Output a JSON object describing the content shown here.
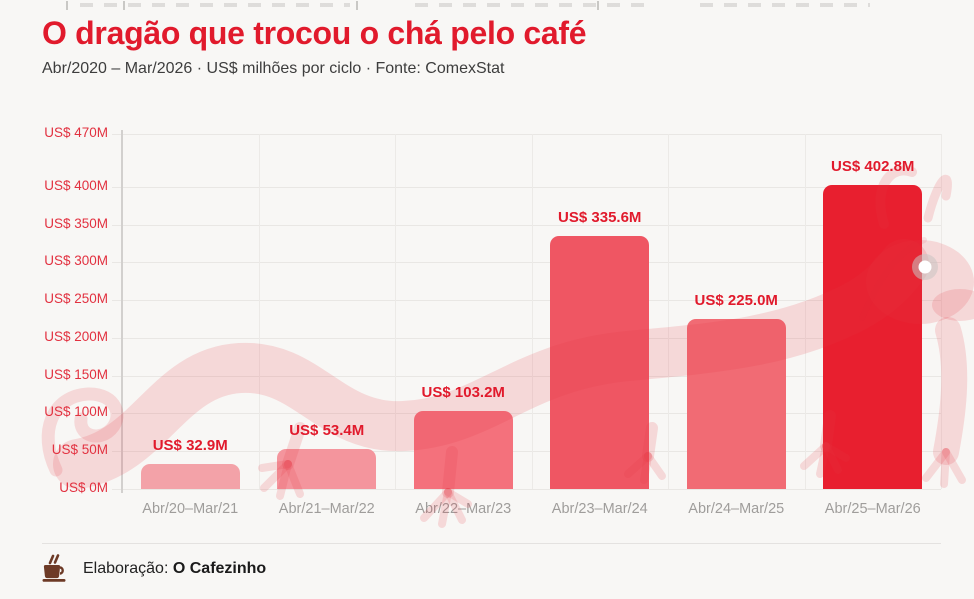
{
  "header": {
    "title": "O dragão que trocou o chá pelo café",
    "subtitle": "Abr/2020 – Mar/2026 · US$ milhões por ciclo · Fonte: ComexStat"
  },
  "chart_data": {
    "type": "bar",
    "title": "O dragão que trocou o chá pelo café",
    "subtitle": "Abr/2020 – Mar/2026 · US$ milhões por ciclo · Fonte: ComexStat",
    "categories": [
      "Abr/20–Mar/21",
      "Abr/21–Mar/22",
      "Abr/22–Mar/23",
      "Abr/23–Mar/24",
      "Abr/24–Mar/25",
      "Abr/25–Mar/26"
    ],
    "values": [
      32.9,
      53.4,
      103.2,
      335.6,
      225.0,
      402.8
    ],
    "value_labels": [
      "US$ 32.9M",
      "US$ 53.4M",
      "US$ 103.2M",
      "US$ 335.6M",
      "US$ 225.0M",
      "US$ 402.8M"
    ],
    "bar_colors": [
      "#f3a2a8",
      "#f4959d",
      "#f4717c",
      "#ef5663",
      "#f16b74",
      "#e81f2f"
    ],
    "y_ticks": {
      "values": [
        0,
        50,
        100,
        150,
        200,
        250,
        300,
        350,
        400,
        470
      ],
      "labels": [
        "US$ 0M",
        "US$ 50M",
        "US$ 100M",
        "US$ 150M",
        "US$ 200M",
        "US$ 250M",
        "US$ 300M",
        "US$ 350M",
        "US$ 400M",
        "US$ 470M"
      ]
    },
    "ylim": [
      0,
      470
    ],
    "grid": true,
    "legend": "none",
    "accent_color": "#e11a2c",
    "watermark": "dragon-silhouette"
  },
  "footer": {
    "prefix": "Elaboração:",
    "source": "O Cafezinho",
    "icon": "coffee-mug-icon"
  }
}
